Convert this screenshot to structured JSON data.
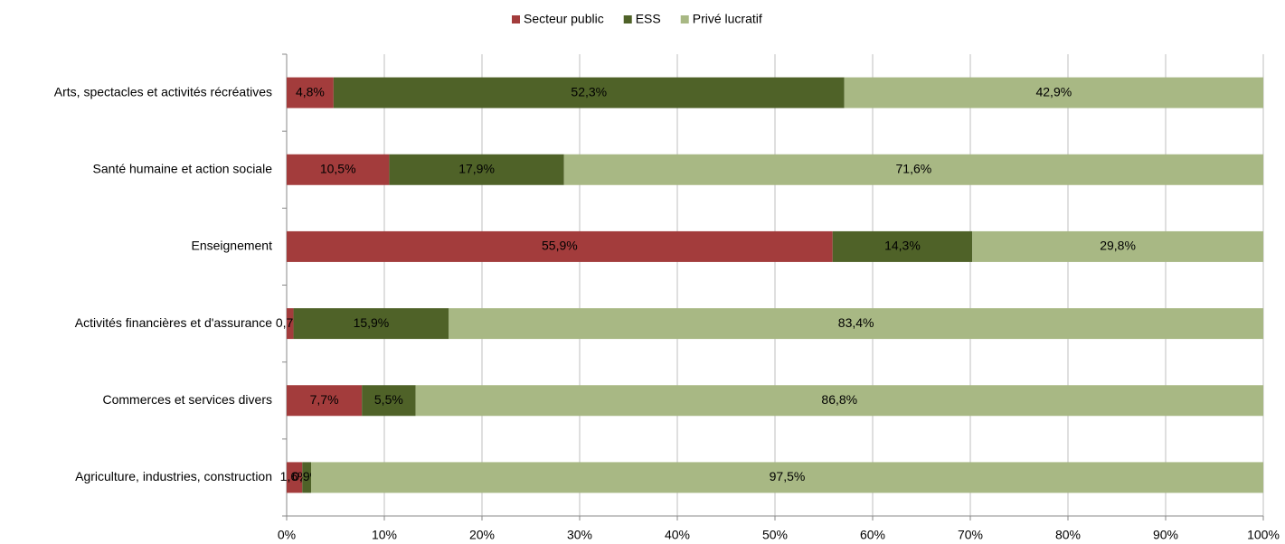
{
  "chart_data": {
    "type": "stacked-barh",
    "categories": [
      "Arts, spectacles et activités récréatives",
      "Santé humaine et action sociale",
      "Enseignement",
      "Activités financières et d'assurance",
      "Commerces et services divers",
      "Agriculture, industries, construction"
    ],
    "series": [
      {
        "name": "Secteur public",
        "color": "#a33c3c",
        "values": [
          4.8,
          10.5,
          55.9,
          0.7,
          7.7,
          1.6
        ],
        "value_labels": [
          "4,8%",
          "10,5%",
          "55,9%",
          "0,7%",
          "7,7%",
          "1,6%"
        ]
      },
      {
        "name": "ESS",
        "color": "#4f6228",
        "values": [
          52.3,
          17.9,
          14.3,
          15.9,
          5.5,
          0.9
        ],
        "value_labels": [
          "52,3%",
          "17,9%",
          "14,3%",
          "15,9%",
          "5,5%",
          "0,9%"
        ]
      },
      {
        "name": "Privé lucratif",
        "color": "#a8b884",
        "values": [
          42.9,
          71.6,
          29.8,
          83.4,
          86.8,
          97.5
        ],
        "value_labels": [
          "42,9%",
          "71,6%",
          "29,8%",
          "83,4%",
          "86,8%",
          "97,5%"
        ]
      }
    ],
    "xlim": [
      0,
      100
    ],
    "xticks": [
      {
        "value": 0,
        "label": "0%"
      },
      {
        "value": 10,
        "label": "10%"
      },
      {
        "value": 20,
        "label": "20%"
      },
      {
        "value": 30,
        "label": "30%"
      },
      {
        "value": 40,
        "label": "40%"
      },
      {
        "value": 50,
        "label": "50%"
      },
      {
        "value": 60,
        "label": "60%"
      },
      {
        "value": 70,
        "label": "70%"
      },
      {
        "value": 80,
        "label": "80%"
      },
      {
        "value": 90,
        "label": "90%"
      },
      {
        "value": 100,
        "label": "100%"
      }
    ],
    "grid": true,
    "legend": "top"
  }
}
